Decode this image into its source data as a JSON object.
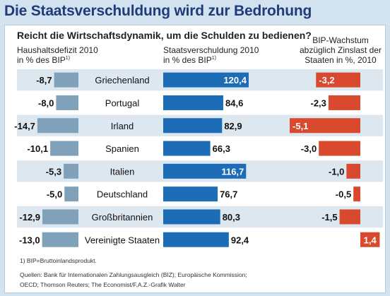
{
  "title": "Die Staatsverschuldung wird zur Bedrohung",
  "question": "Reicht die Wirtschaftsdynamik, um die Schulden zu bedienen?",
  "headers": {
    "left_line1": "Haushaltsdefizit 2010",
    "left_line2": "in % des BIP",
    "left_sup": "1)",
    "mid_line1": "Staatsverschuldung 2010",
    "mid_line2": "in % des BIP",
    "mid_sup": "1)",
    "right_line1": "BIP-Wachstum",
    "right_line2": "abzüglich Zinslast der",
    "right_line3": "Staaten in %, 2010"
  },
  "footnote": "1) BIP=Bruttoinlandsprodukt.",
  "sources": "Quellen: Bank für Internationalen Zahlungsausgleich (BIZ); Europäische Kommission; OECD; Thomson Reuters; The Economist/F.A.Z.-Grafik Walter",
  "colors": {
    "deficit": "#7fa2ba",
    "debt_normal": "#1c6db5",
    "debt_highlight": "#1c6db5",
    "growth": "#d9492e",
    "row_band": "#dde7f0",
    "title": "#1f3c79"
  },
  "chart_data": {
    "type": "bar",
    "categories": [
      "Griechenland",
      "Portugal",
      "Irland",
      "Spanien",
      "Italien",
      "Deutschland",
      "Großbritannien",
      "Vereinigte Staaten"
    ],
    "series": [
      {
        "name": "Haushaltsdefizit 2010 in % des BIP",
        "values": [
          -8.7,
          -8.0,
          -14.7,
          -10.1,
          -5.3,
          -5.0,
          -12.9,
          -13.0
        ],
        "labels": [
          "-8,7",
          "-8,0",
          "-14,7",
          "-10,1",
          "-5,3",
          "-5,0",
          "-12,9",
          "-13,0"
        ]
      },
      {
        "name": "Staatsverschuldung 2010 in % des BIP",
        "values": [
          120.4,
          84.6,
          82.9,
          66.3,
          116.7,
          76.7,
          80.3,
          92.4
        ],
        "labels": [
          "120,4",
          "84,6",
          "82,9",
          "66,3",
          "116,7",
          "76,7",
          "80,3",
          "92,4"
        ]
      },
      {
        "name": "BIP-Wachstum abzüglich Zinslast der Staaten in %, 2010",
        "values": [
          -3.2,
          -2.3,
          -5.1,
          -3.0,
          -1.0,
          -0.5,
          -1.5,
          1.4
        ],
        "labels": [
          "-3,2",
          "-2,3",
          "-5,1",
          "-3,0",
          "-1,0",
          "-0,5",
          "-1,5",
          "1,4"
        ]
      }
    ],
    "grid": false,
    "legend": "none"
  }
}
